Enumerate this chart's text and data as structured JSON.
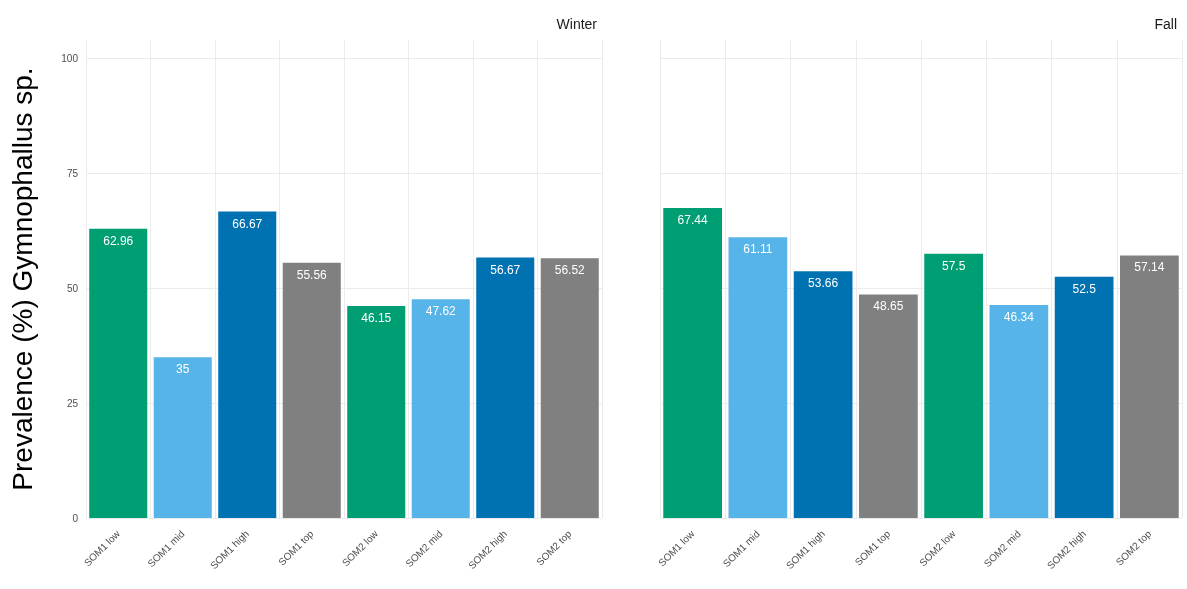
{
  "chart_data": [
    {
      "type": "bar",
      "title": "Winter",
      "ylabel": "Prevalence (%) Gymnophallus sp.",
      "categories": [
        "SOM1 low",
        "SOM1 mid",
        "SOM1 high",
        "SOM1 top",
        "SOM2 low",
        "SOM2 mid",
        "SOM2 high",
        "SOM2 top"
      ],
      "values": [
        62.96,
        35,
        66.67,
        55.56,
        46.15,
        47.62,
        56.67,
        56.52
      ],
      "colors": [
        "#009e73",
        "#56b4e9",
        "#0072b2",
        "#808080",
        "#009e73",
        "#56b4e9",
        "#0072b2",
        "#808080"
      ],
      "ylim": [
        0,
        104
      ],
      "yticks": [
        0,
        25,
        50,
        75,
        100
      ],
      "grid": true,
      "data_labels": true
    },
    {
      "type": "bar",
      "title": "Fall",
      "categories": [
        "SOM1 low",
        "SOM1 mid",
        "SOM1 high",
        "SOM1 top",
        "SOM2 low",
        "SOM2 mid",
        "SOM2 high",
        "SOM2 top"
      ],
      "values": [
        67.44,
        61.11,
        53.66,
        48.65,
        57.5,
        46.34,
        52.5,
        57.14
      ],
      "colors": [
        "#009e73",
        "#56b4e9",
        "#0072b2",
        "#808080",
        "#009e73",
        "#56b4e9",
        "#0072b2",
        "#808080"
      ],
      "ylim": [
        0,
        104
      ],
      "yticks": [
        0,
        25,
        50,
        75,
        100
      ],
      "grid": true,
      "data_labels": true,
      "tick_labels": "x"
    }
  ]
}
